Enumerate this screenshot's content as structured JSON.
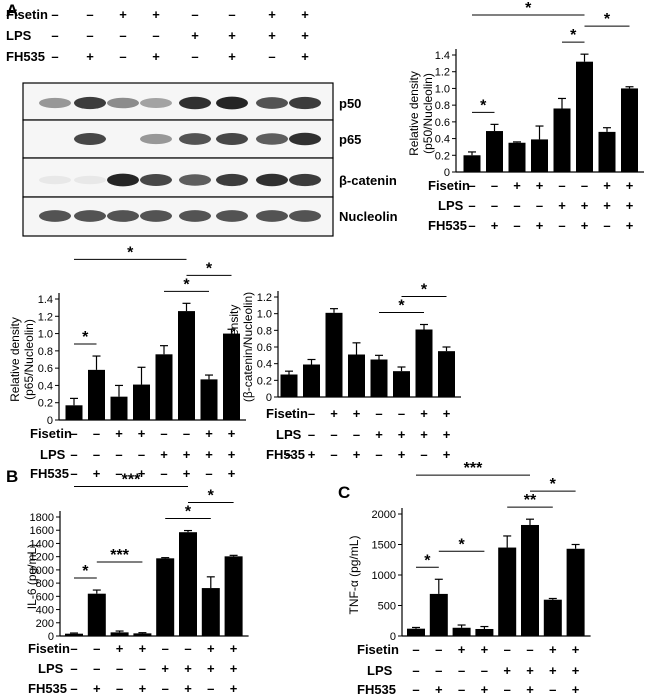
{
  "panel_labels": [
    "A",
    "B",
    "C"
  ],
  "conditions": {
    "Fisetin": [
      "-",
      "-",
      "+",
      "+",
      "-",
      "-",
      "+",
      "+"
    ],
    "LPS": [
      "-",
      "-",
      "-",
      "-",
      "+",
      "+",
      "+",
      "+"
    ],
    "FH535": [
      "-",
      "+",
      "-",
      "+",
      "-",
      "+",
      "-",
      "+"
    ]
  },
  "condition_labels": [
    "Fisetin",
    "LPS",
    "FH535"
  ],
  "blot": {
    "rows": [
      "p50",
      "p65",
      "β-catenin",
      "Nucleolin"
    ],
    "band_intensity": [
      [
        0.45,
        0.85,
        0.5,
        0.4,
        0.9,
        0.95,
        0.75,
        0.85
      ],
      [
        0.0,
        0.8,
        0.0,
        0.45,
        0.75,
        0.8,
        0.7,
        0.9
      ],
      [
        0.1,
        0.1,
        0.95,
        0.8,
        0.7,
        0.85,
        0.9,
        0.85
      ],
      [
        0.75,
        0.75,
        0.75,
        0.75,
        0.75,
        0.75,
        0.75,
        0.75
      ]
    ]
  },
  "chart_data": [
    {
      "id": "p50",
      "type": "bar",
      "panel": "A",
      "ylabel": [
        "Relative density",
        "(p50/Nucleolin)"
      ],
      "ylim": [
        0,
        1.4
      ],
      "yticks": [
        "0",
        "0.2",
        "0.4",
        "0.6",
        "0.8",
        "1.0",
        "1.2",
        "1.4"
      ],
      "values": [
        0.2,
        0.49,
        0.35,
        0.39,
        0.76,
        1.32,
        0.48,
        1.0
      ],
      "errors": [
        0.04,
        0.08,
        0.01,
        0.16,
        0.12,
        0.09,
        0.05,
        0.02
      ],
      "significance": [
        {
          "from": 1,
          "to": 2,
          "label": "*"
        },
        {
          "from": 1,
          "to": 6,
          "label": "*"
        },
        {
          "from": 5,
          "to": 6,
          "label": "*"
        },
        {
          "from": 6,
          "to": 8,
          "label": "*"
        }
      ]
    },
    {
      "id": "p65",
      "type": "bar",
      "panel": "A",
      "ylabel": [
        "Relative density",
        "(p65/Nucleolin)"
      ],
      "ylim": [
        0.0,
        1.4
      ],
      "yticks": [
        "0",
        "0.2",
        "0.4",
        "0.6",
        "0.8",
        "1.0",
        "1.2",
        "1.4"
      ],
      "values": [
        0.17,
        0.58,
        0.27,
        0.41,
        0.76,
        1.26,
        0.47,
        1.0
      ],
      "errors": [
        0.08,
        0.16,
        0.13,
        0.2,
        0.1,
        0.09,
        0.05,
        0.05
      ],
      "significance": [
        {
          "from": 1,
          "to": 2,
          "label": "*"
        },
        {
          "from": 1,
          "to": 6,
          "label": "*"
        },
        {
          "from": 5,
          "to": 7,
          "label": "*"
        },
        {
          "from": 6,
          "to": 8,
          "label": "*"
        }
      ]
    },
    {
      "id": "bcatenin",
      "type": "bar",
      "panel": "A",
      "ylabel": [
        "Relative density",
        "(β-catenin/Nucleolin)"
      ],
      "ylim": [
        0,
        1.2
      ],
      "yticks": [
        "0",
        "0.2",
        "0.4",
        "0.6",
        "0.8",
        "1.0",
        "1.2"
      ],
      "values": [
        0.27,
        0.39,
        1.01,
        0.51,
        0.45,
        0.31,
        0.81,
        0.55
      ],
      "errors": [
        0.04,
        0.06,
        0.05,
        0.14,
        0.05,
        0.05,
        0.06,
        0.05
      ],
      "significance": [
        {
          "from": 5,
          "to": 7,
          "label": "*"
        },
        {
          "from": 6,
          "to": 8,
          "label": "*"
        }
      ]
    },
    {
      "id": "il6",
      "type": "bar",
      "panel": "B",
      "ylabel": [
        "IL-6 (pg/mL)"
      ],
      "ylim": [
        0,
        1800
      ],
      "yticks": [
        "0",
        "200",
        "400",
        "600",
        "800",
        "1000",
        "1200",
        "1400",
        "1600",
        "1800"
      ],
      "values": [
        35,
        640,
        55,
        40,
        1175,
        1570,
        725,
        1205
      ],
      "errors": [
        10,
        55,
        20,
        10,
        10,
        25,
        170,
        15
      ],
      "significance": [
        {
          "from": 1,
          "to": 2,
          "label": "*"
        },
        {
          "from": 1,
          "to": 6,
          "label": "***"
        },
        {
          "from": 2,
          "to": 4,
          "label": "***"
        },
        {
          "from": 5,
          "to": 7,
          "label": "*"
        },
        {
          "from": 6,
          "to": 8,
          "label": "*"
        }
      ]
    },
    {
      "id": "tnfa",
      "type": "bar",
      "panel": "C",
      "ylabel": [
        "TNF-α (pg/mL)"
      ],
      "ylim": [
        0,
        2000
      ],
      "yticks": [
        "0",
        "500",
        "1000",
        "1500",
        "2000"
      ],
      "values": [
        120,
        690,
        135,
        115,
        1450,
        1820,
        595,
        1430
      ],
      "errors": [
        20,
        240,
        45,
        40,
        190,
        95,
        20,
        70
      ],
      "significance": [
        {
          "from": 1,
          "to": 2,
          "label": "*"
        },
        {
          "from": 1,
          "to": 6,
          "label": "***"
        },
        {
          "from": 2,
          "to": 4,
          "label": "*"
        },
        {
          "from": 5,
          "to": 7,
          "label": "**"
        },
        {
          "from": 6,
          "to": 8,
          "label": "*"
        }
      ]
    }
  ]
}
